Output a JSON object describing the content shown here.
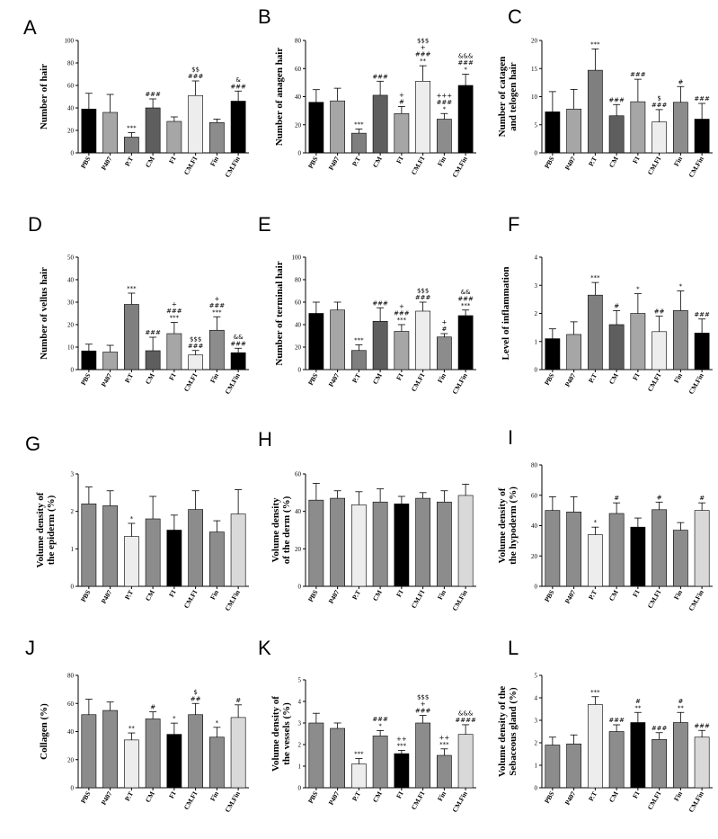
{
  "chart_data": [
    {
      "id": "A",
      "letter": "A",
      "type": "bar",
      "ylabel": "Number of hair",
      "ylim": [
        0,
        100
      ],
      "yticks": [
        0,
        20,
        40,
        60,
        80,
        100
      ],
      "categories": [
        "PBS",
        "P407",
        "P.T",
        "CM",
        "FI",
        "CM.FI",
        "Fin",
        "CM.Fin"
      ],
      "values": [
        39,
        36,
        14,
        40,
        28,
        51,
        27,
        46
      ],
      "errors": [
        14,
        16,
        4,
        8,
        4,
        13,
        3,
        9
      ],
      "colors": [
        "#000000",
        "#a6a6a6",
        "#7f7f7f",
        "#5e5e5e",
        "#a6a6a6",
        "#ededed",
        "#8c8c8c",
        "#000000"
      ],
      "annotations": [
        [],
        [],
        [
          "***"
        ],
        [
          "###"
        ],
        [],
        [
          "$$",
          "###"
        ],
        [],
        [
          "&",
          "###"
        ]
      ]
    },
    {
      "id": "B",
      "letter": "B",
      "type": "bar",
      "ylabel": "Number of anagen hair",
      "ylim": [
        0,
        80
      ],
      "yticks": [
        0,
        20,
        40,
        60,
        80
      ],
      "categories": [
        "PBS",
        "P407",
        "P.T",
        "CM",
        "FI",
        "CM.FI",
        "Fin",
        "CM.Fin"
      ],
      "values": [
        36,
        37,
        14,
        41,
        28,
        51,
        24,
        48
      ],
      "errors": [
        9,
        9,
        3,
        10,
        5,
        11,
        4,
        8
      ],
      "colors": [
        "#000000",
        "#a6a6a6",
        "#7f7f7f",
        "#5e5e5e",
        "#a6a6a6",
        "#ededed",
        "#8c8c8c",
        "#000000"
      ],
      "annotations": [
        [],
        [],
        [
          "***"
        ],
        [
          "###"
        ],
        [
          "+",
          "#"
        ],
        [
          "$$$",
          "+",
          "###",
          "**"
        ],
        [
          "+++",
          "###",
          "*"
        ],
        [
          "&&&",
          "###",
          "*"
        ]
      ]
    },
    {
      "id": "C",
      "letter": "C",
      "type": "bar",
      "ylabel": "Number of catagen and telogen hair",
      "ylim": [
        0,
        20
      ],
      "yticks": [
        0,
        5,
        10,
        15,
        20
      ],
      "categories": [
        "PBS",
        "P407",
        "P.T",
        "CM",
        "FI",
        "CM.FI",
        "Fin",
        "CM.Fin"
      ],
      "values": [
        7.3,
        7.8,
        14.7,
        6.6,
        9.1,
        5.5,
        9.0,
        6.0
      ],
      "errors": [
        3.6,
        3.5,
        3.8,
        2.0,
        4.0,
        2.2,
        2.8,
        2.8
      ],
      "colors": [
        "#000000",
        "#a6a6a6",
        "#7f7f7f",
        "#5e5e5e",
        "#a6a6a6",
        "#ededed",
        "#8c8c8c",
        "#000000"
      ],
      "annotations": [
        [],
        [],
        [
          "***"
        ],
        [
          "###"
        ],
        [
          "###"
        ],
        [
          "$",
          "###"
        ],
        [
          "#"
        ],
        [
          "###"
        ]
      ]
    },
    {
      "id": "D",
      "letter": "D",
      "type": "bar",
      "ylabel": "Number of vellus hair",
      "ylim": [
        0,
        50
      ],
      "yticks": [
        0,
        10,
        20,
        30,
        40,
        50
      ],
      "categories": [
        "PBS",
        "P407",
        "P.T",
        "CM",
        "FI",
        "CM.FI",
        "Fin",
        "CM.Fin"
      ],
      "values": [
        8.3,
        7.8,
        29,
        8.4,
        16,
        6.5,
        17.5,
        7.5
      ],
      "errors": [
        3,
        3,
        5,
        6,
        5,
        2,
        6,
        2
      ],
      "colors": [
        "#000000",
        "#a6a6a6",
        "#7f7f7f",
        "#5e5e5e",
        "#a6a6a6",
        "#ededed",
        "#8c8c8c",
        "#000000"
      ],
      "annotations": [
        [],
        [],
        [
          "***"
        ],
        [
          "###"
        ],
        [
          "+",
          "###",
          "***"
        ],
        [
          "$$$",
          "###"
        ],
        [
          "+",
          "###",
          "***"
        ],
        [
          "&&",
          "###"
        ]
      ]
    },
    {
      "id": "E",
      "letter": "E",
      "type": "bar",
      "ylabel": "Number of terminal hair",
      "ylim": [
        0,
        100
      ],
      "yticks": [
        0,
        20,
        40,
        60,
        80,
        100
      ],
      "categories": [
        "PBS",
        "P407",
        "P.T",
        "CM",
        "FI",
        "CM.FI",
        "Fin",
        "CM.Fin"
      ],
      "values": [
        50,
        53,
        17,
        43,
        34,
        52,
        29,
        48
      ],
      "errors": [
        10,
        7,
        5,
        12,
        6,
        8,
        3,
        5
      ],
      "colors": [
        "#000000",
        "#a6a6a6",
        "#7f7f7f",
        "#5e5e5e",
        "#a6a6a6",
        "#ededed",
        "#8c8c8c",
        "#000000"
      ],
      "annotations": [
        [],
        [],
        [
          "***"
        ],
        [
          "###"
        ],
        [
          "+",
          "###",
          "***"
        ],
        [
          "$$$",
          "###"
        ],
        [
          "+",
          "#"
        ],
        [
          "&&",
          "###",
          "***"
        ]
      ]
    },
    {
      "id": "F",
      "letter": "F",
      "type": "bar",
      "ylabel": "Level of inflammation",
      "ylim": [
        0,
        4
      ],
      "yticks": [
        0,
        1,
        2,
        3,
        4
      ],
      "categories": [
        "PBS",
        "P407",
        "P.T",
        "CM",
        "FI",
        "CM.FI",
        "Fin",
        "CM.Fin"
      ],
      "values": [
        1.1,
        1.25,
        2.65,
        1.6,
        2.0,
        1.35,
        2.1,
        1.3
      ],
      "errors": [
        0.35,
        0.45,
        0.45,
        0.5,
        0.7,
        0.55,
        0.7,
        0.5
      ],
      "colors": [
        "#000000",
        "#a6a6a6",
        "#7f7f7f",
        "#5e5e5e",
        "#a6a6a6",
        "#ededed",
        "#8c8c8c",
        "#000000"
      ],
      "annotations": [
        [],
        [],
        [
          "***"
        ],
        [
          "#"
        ],
        [
          "*"
        ],
        [
          "##"
        ],
        [
          "*"
        ],
        [
          "###"
        ]
      ]
    },
    {
      "id": "G",
      "letter": "G",
      "type": "bar",
      "ylabel": "Volume density of the epiderm (%)",
      "ylim": [
        0,
        3
      ],
      "yticks": [
        0,
        1,
        2,
        3
      ],
      "categories": [
        "PBS",
        "P407",
        "P.T",
        "CM",
        "FI",
        "CM.FI",
        "Fin",
        "CM.Fin"
      ],
      "values": [
        2.2,
        2.15,
        1.33,
        1.8,
        1.5,
        2.05,
        1.45,
        1.93
      ],
      "errors": [
        0.45,
        0.4,
        0.35,
        0.6,
        0.4,
        0.5,
        0.3,
        0.65
      ],
      "colors": [
        "#8c8c8c",
        "#8c8c8c",
        "#ededed",
        "#8c8c8c",
        "#000000",
        "#8c8c8c",
        "#8c8c8c",
        "#d9d9d9"
      ],
      "annotations": [
        [],
        [],
        [
          "*"
        ],
        [],
        [],
        [],
        [],
        []
      ]
    },
    {
      "id": "H",
      "letter": "H",
      "type": "bar",
      "ylabel": "Volume density of the derm (%)",
      "ylim": [
        0,
        60
      ],
      "yticks": [
        0,
        20,
        40,
        60
      ],
      "categories": [
        "PBS",
        "P407",
        "P.T",
        "CM",
        "FI",
        "CM.FI",
        "Fin",
        "CM.Fin"
      ],
      "values": [
        46,
        47,
        43.5,
        45,
        44,
        47,
        45,
        48.5
      ],
      "errors": [
        9,
        4,
        7,
        7,
        4,
        3,
        6,
        6
      ],
      "colors": [
        "#8c8c8c",
        "#8c8c8c",
        "#ededed",
        "#8c8c8c",
        "#000000",
        "#8c8c8c",
        "#8c8c8c",
        "#d9d9d9"
      ],
      "annotations": [
        [],
        [],
        [],
        [],
        [],
        [],
        [],
        []
      ]
    },
    {
      "id": "I",
      "letter": "I",
      "type": "bar",
      "ylabel": "Volume density of the hypoderm (%)",
      "ylim": [
        0,
        80
      ],
      "yticks": [
        0,
        20,
        40,
        60,
        80
      ],
      "categories": [
        "PBS",
        "P407",
        "P.T",
        "CM",
        "FI",
        "CM.FI",
        "Fin",
        "CM.Fin"
      ],
      "values": [
        50,
        49,
        34,
        48,
        39,
        50.5,
        37,
        50
      ],
      "errors": [
        9,
        10,
        5,
        7,
        6,
        5,
        5,
        5
      ],
      "colors": [
        "#8c8c8c",
        "#8c8c8c",
        "#ededed",
        "#8c8c8c",
        "#000000",
        "#8c8c8c",
        "#8c8c8c",
        "#d9d9d9"
      ],
      "annotations": [
        [],
        [],
        [
          "*"
        ],
        [
          "#"
        ],
        [],
        [
          "#"
        ],
        [],
        [
          "#"
        ]
      ]
    },
    {
      "id": "J",
      "letter": "J",
      "type": "bar",
      "ylabel": "Collagen (%)",
      "ylim": [
        0,
        80
      ],
      "yticks": [
        0,
        20,
        40,
        60,
        80
      ],
      "categories": [
        "PBS",
        "P407",
        "P.T",
        "CM",
        "FI",
        "CM.FI",
        "Fin",
        "CM.Fin"
      ],
      "values": [
        52,
        55,
        34,
        49,
        38,
        52,
        36,
        50
      ],
      "errors": [
        11,
        6,
        5,
        5,
        8,
        8,
        7,
        9
      ],
      "colors": [
        "#8c8c8c",
        "#8c8c8c",
        "#ededed",
        "#8c8c8c",
        "#000000",
        "#8c8c8c",
        "#8c8c8c",
        "#d9d9d9"
      ],
      "annotations": [
        [],
        [],
        [
          "**"
        ],
        [
          "#"
        ],
        [
          "*"
        ],
        [
          "$",
          "##"
        ],
        [
          "*"
        ],
        [
          "#"
        ]
      ]
    },
    {
      "id": "K",
      "letter": "K",
      "type": "bar",
      "ylabel": "Volume density of the vessels (%)",
      "ylim": [
        0,
        5
      ],
      "yticks": [
        0,
        1,
        2,
        3,
        4,
        5
      ],
      "categories": [
        "PBS",
        "P407",
        "P.T",
        "CM",
        "FI",
        "CM.FI",
        "Fin",
        "CM.Fin"
      ],
      "values": [
        3.0,
        2.75,
        1.1,
        2.4,
        1.58,
        3.0,
        1.5,
        2.47
      ],
      "errors": [
        0.45,
        0.25,
        0.25,
        0.25,
        0.15,
        0.35,
        0.3,
        0.45
      ],
      "colors": [
        "#8c8c8c",
        "#8c8c8c",
        "#ededed",
        "#8c8c8c",
        "#000000",
        "#8c8c8c",
        "#8c8c8c",
        "#d9d9d9"
      ],
      "annotations": [
        [],
        [],
        [
          "***"
        ],
        [
          "###",
          "*"
        ],
        [
          "++",
          "***"
        ],
        [
          "$$$",
          "+",
          "###"
        ],
        [
          "++",
          "***"
        ],
        [
          "&&&",
          "####"
        ]
      ]
    },
    {
      "id": "L",
      "letter": "L",
      "type": "bar",
      "ylabel": "Volume density of the Sebaceous gland (%)",
      "ylim": [
        0,
        5
      ],
      "yticks": [
        0,
        1,
        2,
        3,
        4,
        5
      ],
      "categories": [
        "PBS",
        "P407",
        "P.T",
        "CM",
        "FI",
        "CM.FI",
        "Fin",
        "CM.Fin"
      ],
      "values": [
        1.9,
        1.95,
        3.7,
        2.5,
        2.9,
        2.15,
        2.9,
        2.25
      ],
      "errors": [
        0.35,
        0.4,
        0.35,
        0.3,
        0.45,
        0.3,
        0.45,
        0.3
      ],
      "colors": [
        "#8c8c8c",
        "#8c8c8c",
        "#ededed",
        "#8c8c8c",
        "#000000",
        "#8c8c8c",
        "#8c8c8c",
        "#d9d9d9"
      ],
      "annotations": [
        [],
        [],
        [
          "***"
        ],
        [
          "###"
        ],
        [
          "#",
          "**"
        ],
        [
          "###"
        ],
        [
          "#",
          "**"
        ],
        [
          "###"
        ]
      ]
    }
  ]
}
